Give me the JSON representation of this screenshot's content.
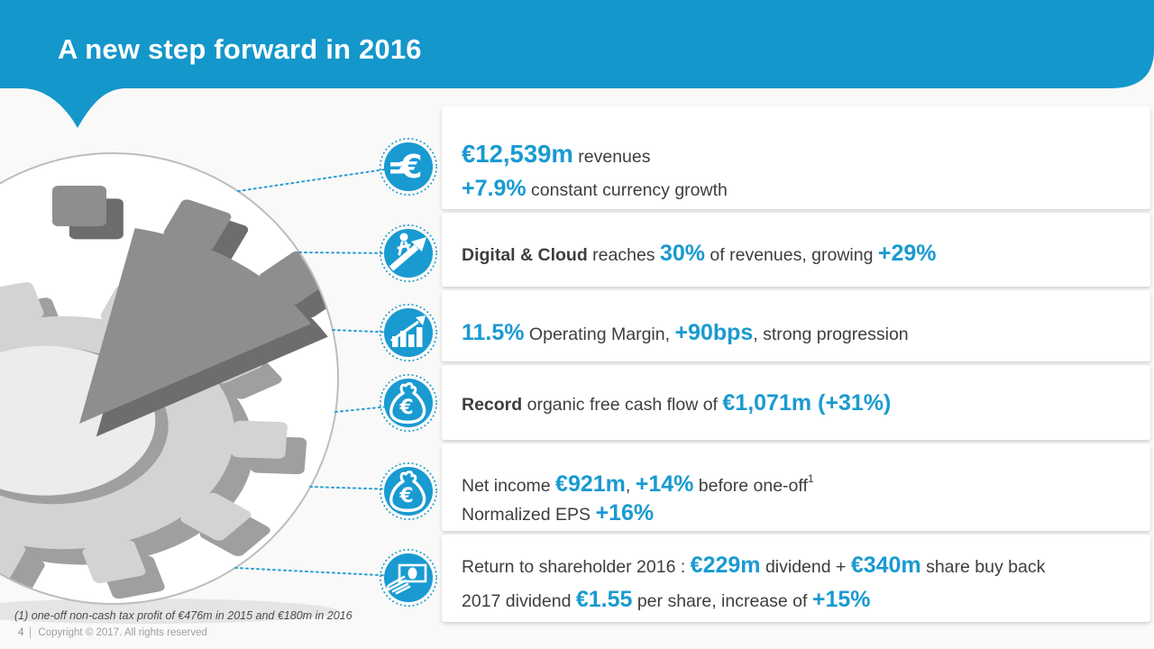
{
  "slide": {
    "title": "A new step forward in 2016",
    "footnote": "(1) one-off non-cash tax profit of €476m in 2015 and €180m in 2016",
    "page_number": "4",
    "copyright": "Copyright © 2017. All rights reserved"
  },
  "colors": {
    "header_blue": "#1497cb",
    "accent_blue": "#199ad1",
    "dark_text": "#3e3e3e",
    "title_text": "#ffffff",
    "copyright_text": "#a0a0a0",
    "gear_light": "#d3d3d3",
    "gear_dark": "#8e8e8e",
    "background": "#f9f9f8"
  },
  "rows": [
    {
      "icon": "euro-coin-icon",
      "lines": [
        [
          {
            "t": "€12,539m",
            "s": "accentxl"
          },
          {
            "t": " revenues",
            "s": "dark"
          }
        ],
        [
          {
            "t": "+7.9%",
            "s": "accent"
          },
          {
            "t": " constant currency growth",
            "s": "dark"
          }
        ]
      ]
    },
    {
      "icon": "growth-person-icon",
      "lines": [
        [
          {
            "t": "Digital & Cloud",
            "s": "darkbold"
          },
          {
            "t": " reaches ",
            "s": "dark"
          },
          {
            "t": "30%",
            "s": "accent"
          },
          {
            "t": " of revenues, growing ",
            "s": "dark"
          },
          {
            "t": "+29%",
            "s": "accent"
          }
        ]
      ]
    },
    {
      "icon": "bar-chart-growth-icon",
      "lines": [
        [
          {
            "t": "11.5%",
            "s": "accent"
          },
          {
            "t": " Operating Margin, ",
            "s": "dark"
          },
          {
            "t": "+90bps",
            "s": "accent"
          },
          {
            "t": ", strong progression",
            "s": "dark"
          }
        ]
      ]
    },
    {
      "icon": "money-bag-icon",
      "lines": [
        [
          {
            "t": "Record",
            "s": "darkbold"
          },
          {
            "t": " organic free cash flow of ",
            "s": "dark"
          },
          {
            "t": "€1,071m (+31%)",
            "s": "accent"
          }
        ]
      ]
    },
    {
      "icon": "money-bag-icon",
      "lines": [
        [
          {
            "t": "Net income ",
            "s": "dark"
          },
          {
            "t": "€921m",
            "s": "accent"
          },
          {
            "t": ", ",
            "s": "dark"
          },
          {
            "t": "+14%",
            "s": "accent"
          },
          {
            "t": " before one-off",
            "s": "dark"
          },
          {
            "t": "1",
            "s": "sup"
          }
        ],
        [
          {
            "t": "Normalized EPS ",
            "s": "dark"
          },
          {
            "t": "+16%",
            "s": "accent"
          }
        ]
      ]
    },
    {
      "icon": "payment-hand-icon",
      "lines": [
        [
          {
            "t": "Return to shareholder 2016 : ",
            "s": "dark"
          },
          {
            "t": "€229m",
            "s": "accent"
          },
          {
            "t": " dividend + ",
            "s": "dark"
          },
          {
            "t": "€340m",
            "s": "accent"
          },
          {
            "t": " share buy back",
            "s": "dark"
          }
        ],
        [
          {
            "t": "2017 dividend ",
            "s": "dark"
          },
          {
            "t": "€1.55",
            "s": "accent"
          },
          {
            "t": " per share, increase of ",
            "s": "dark"
          },
          {
            "t": "+15%",
            "s": "accent"
          }
        ]
      ]
    }
  ]
}
